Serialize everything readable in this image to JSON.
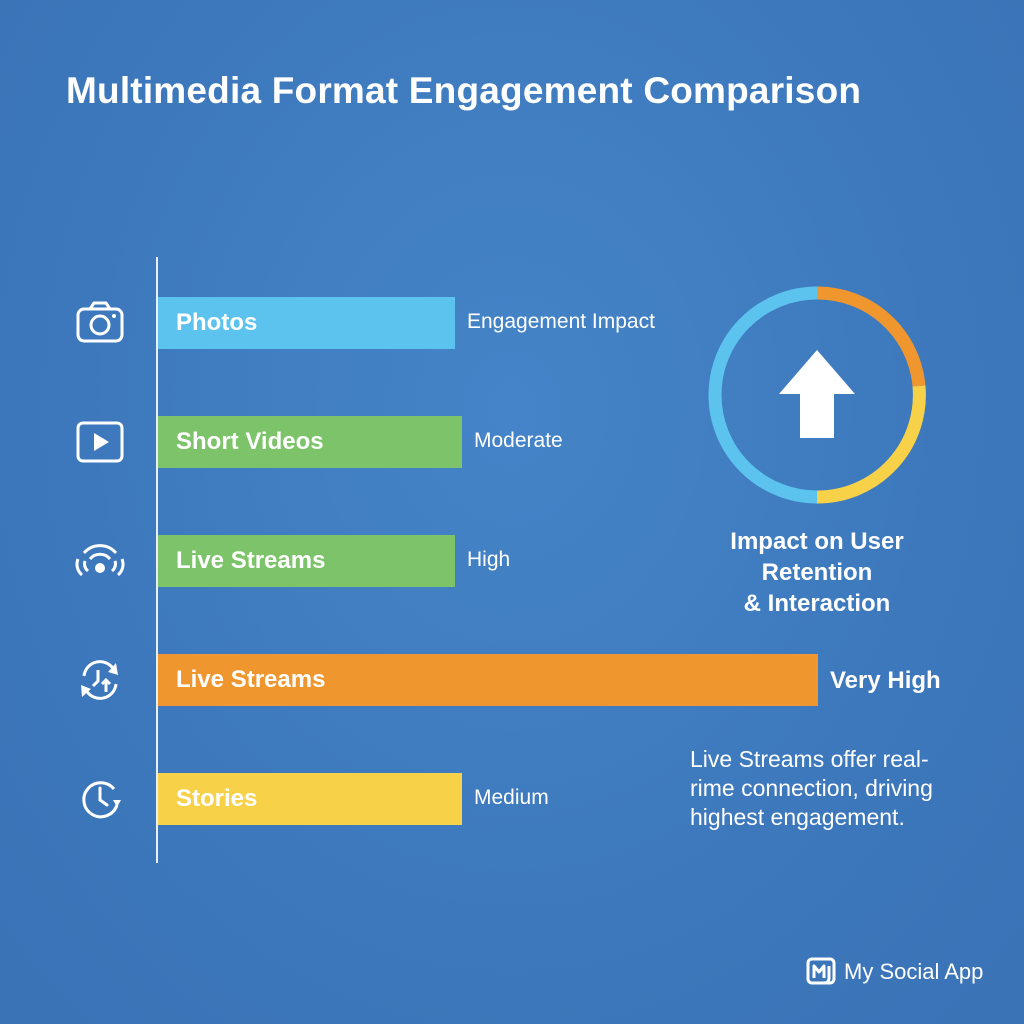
{
  "title": "Multimedia Format Engagement Comparison",
  "chart_data": {
    "type": "bar",
    "orientation": "horizontal",
    "categories": [
      "Photos",
      "Short Videos",
      "Live Streams",
      "Live Streams",
      "Stories"
    ],
    "value_labels": [
      "Engagement Impact",
      "Moderate",
      "High",
      "Very High",
      "Medium"
    ],
    "values": [
      0.45,
      0.46,
      0.45,
      1.0,
      0.46
    ],
    "colors": [
      "#5cc3ee",
      "#7dc36a",
      "#7dc36a",
      "#f0962e",
      "#f7d148"
    ],
    "icons": [
      "camera-icon",
      "play-icon",
      "broadcast-icon",
      "sync-arrows-icon",
      "clock-icon"
    ],
    "title": "Multimedia Format Engagement Comparison",
    "xlabel": "",
    "ylabel": "",
    "grid": false,
    "legend": "none"
  },
  "ring": {
    "icon": "up-arrow-icon",
    "caption_lines": [
      "Impact on User",
      "Retention",
      "& Interaction"
    ],
    "segment_colors": [
      "#f0962e",
      "#f7d148",
      "#5cc3ee"
    ]
  },
  "note": {
    "lines": [
      "Live Streams offer real-",
      "rime connection, driving",
      "highest engagement."
    ]
  },
  "brand": {
    "logo": "app-logo-icon",
    "name": "My Social App"
  },
  "colors": {
    "background": "#3f7bbf",
    "text": "#ffffff"
  }
}
